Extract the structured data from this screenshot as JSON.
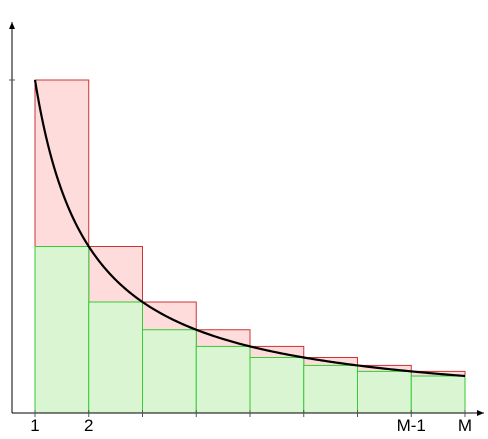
{
  "chart_data": {
    "type": "bar",
    "x_tick_labels": [
      {
        "x": 1,
        "label": "1"
      },
      {
        "x": 2,
        "label": "2"
      },
      {
        "x": 8,
        "label": "M-1"
      },
      {
        "x": 9,
        "label": "M"
      }
    ],
    "xlim": [
      0.55,
      9.5
    ],
    "ylim": [
      0,
      1.27
    ],
    "curve": {
      "function": "1/x",
      "x_range": [
        1,
        9
      ],
      "color": "#000000"
    },
    "series": [
      {
        "kind": "upper-sum-bars",
        "fill": "#ffdcdc",
        "stroke": "#cc3333",
        "bars": [
          {
            "x0": 1,
            "x1": 2,
            "height": 1.0
          },
          {
            "x0": 2,
            "x1": 3,
            "height": 0.5
          },
          {
            "x0": 3,
            "x1": 4,
            "height": 0.3333
          },
          {
            "x0": 4,
            "x1": 5,
            "height": 0.25
          },
          {
            "x0": 5,
            "x1": 6,
            "height": 0.2
          },
          {
            "x0": 6,
            "x1": 7,
            "height": 0.1667
          },
          {
            "x0": 7,
            "x1": 8,
            "height": 0.1429
          },
          {
            "x0": 8,
            "x1": 9,
            "height": 0.125
          }
        ]
      },
      {
        "kind": "lower-sum-bars",
        "fill": "#d9f5d2",
        "stroke": "#33cc33",
        "bars": [
          {
            "x0": 1,
            "x1": 2,
            "height": 0.5
          },
          {
            "x0": 2,
            "x1": 3,
            "height": 0.3333
          },
          {
            "x0": 3,
            "x1": 4,
            "height": 0.25
          },
          {
            "x0": 4,
            "x1": 5,
            "height": 0.2
          },
          {
            "x0": 5,
            "x1": 6,
            "height": 0.1667
          },
          {
            "x0": 6,
            "x1": 7,
            "height": 0.1429
          },
          {
            "x0": 7,
            "x1": 8,
            "height": 0.125
          },
          {
            "x0": 8,
            "x1": 9,
            "height": 0.1111
          }
        ]
      }
    ],
    "y_tick": {
      "y": 1.0
    },
    "grid": false,
    "legend": "none",
    "colors": {
      "axis": "#000000",
      "tick": "#555555"
    }
  }
}
